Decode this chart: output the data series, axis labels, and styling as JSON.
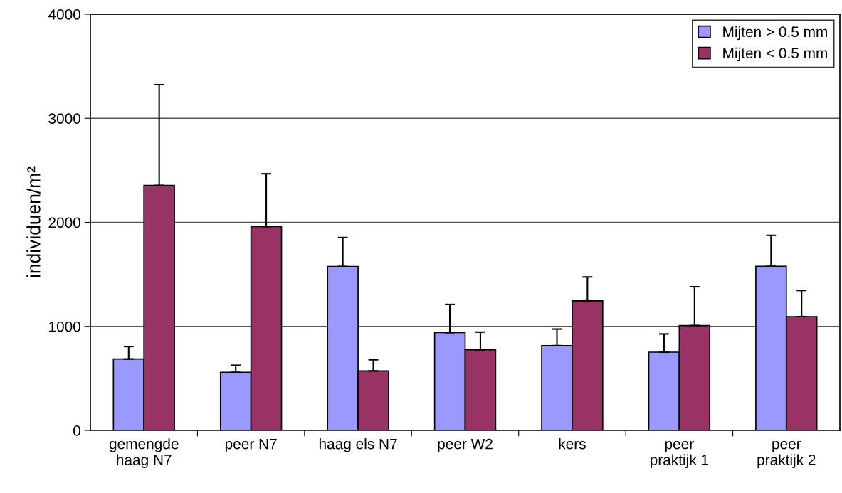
{
  "chart_data": {
    "type": "bar",
    "ylabel": "individuen/m²",
    "categories": [
      "gemengde\nhaag N7",
      "peer N7",
      "haag els N7",
      "peer W2",
      "kers",
      "peer\npraktijk 1",
      "peer\npraktijk 2"
    ],
    "series": [
      {
        "name": "Mijten > 0.5 mm",
        "color": "#9999ff",
        "values": [
          686,
          558,
          1576,
          940,
          815,
          752,
          1577
        ],
        "errors": [
          [
            686,
            806
          ],
          [
            558,
            626
          ],
          [
            1576,
            1854
          ],
          [
            940,
            1211
          ],
          [
            815,
            974
          ],
          [
            752,
            927
          ],
          [
            1577,
            1875
          ]
        ]
      },
      {
        "name": "Mijten < 0.5 mm",
        "color": "#993366",
        "values": [
          2355,
          1959,
          572,
          775,
          1245,
          1008,
          1094
        ],
        "errors": [
          [
            2355,
            3323
          ],
          [
            1959,
            2467
          ],
          [
            572,
            679
          ],
          [
            775,
            945
          ],
          [
            1245,
            1475
          ],
          [
            1008,
            1381
          ],
          [
            1094,
            1345
          ]
        ]
      }
    ],
    "ylim": [
      0,
      4000
    ],
    "yticks": [
      0,
      1000,
      2000,
      3000,
      4000
    ],
    "grid": "y",
    "legend": "top right"
  }
}
